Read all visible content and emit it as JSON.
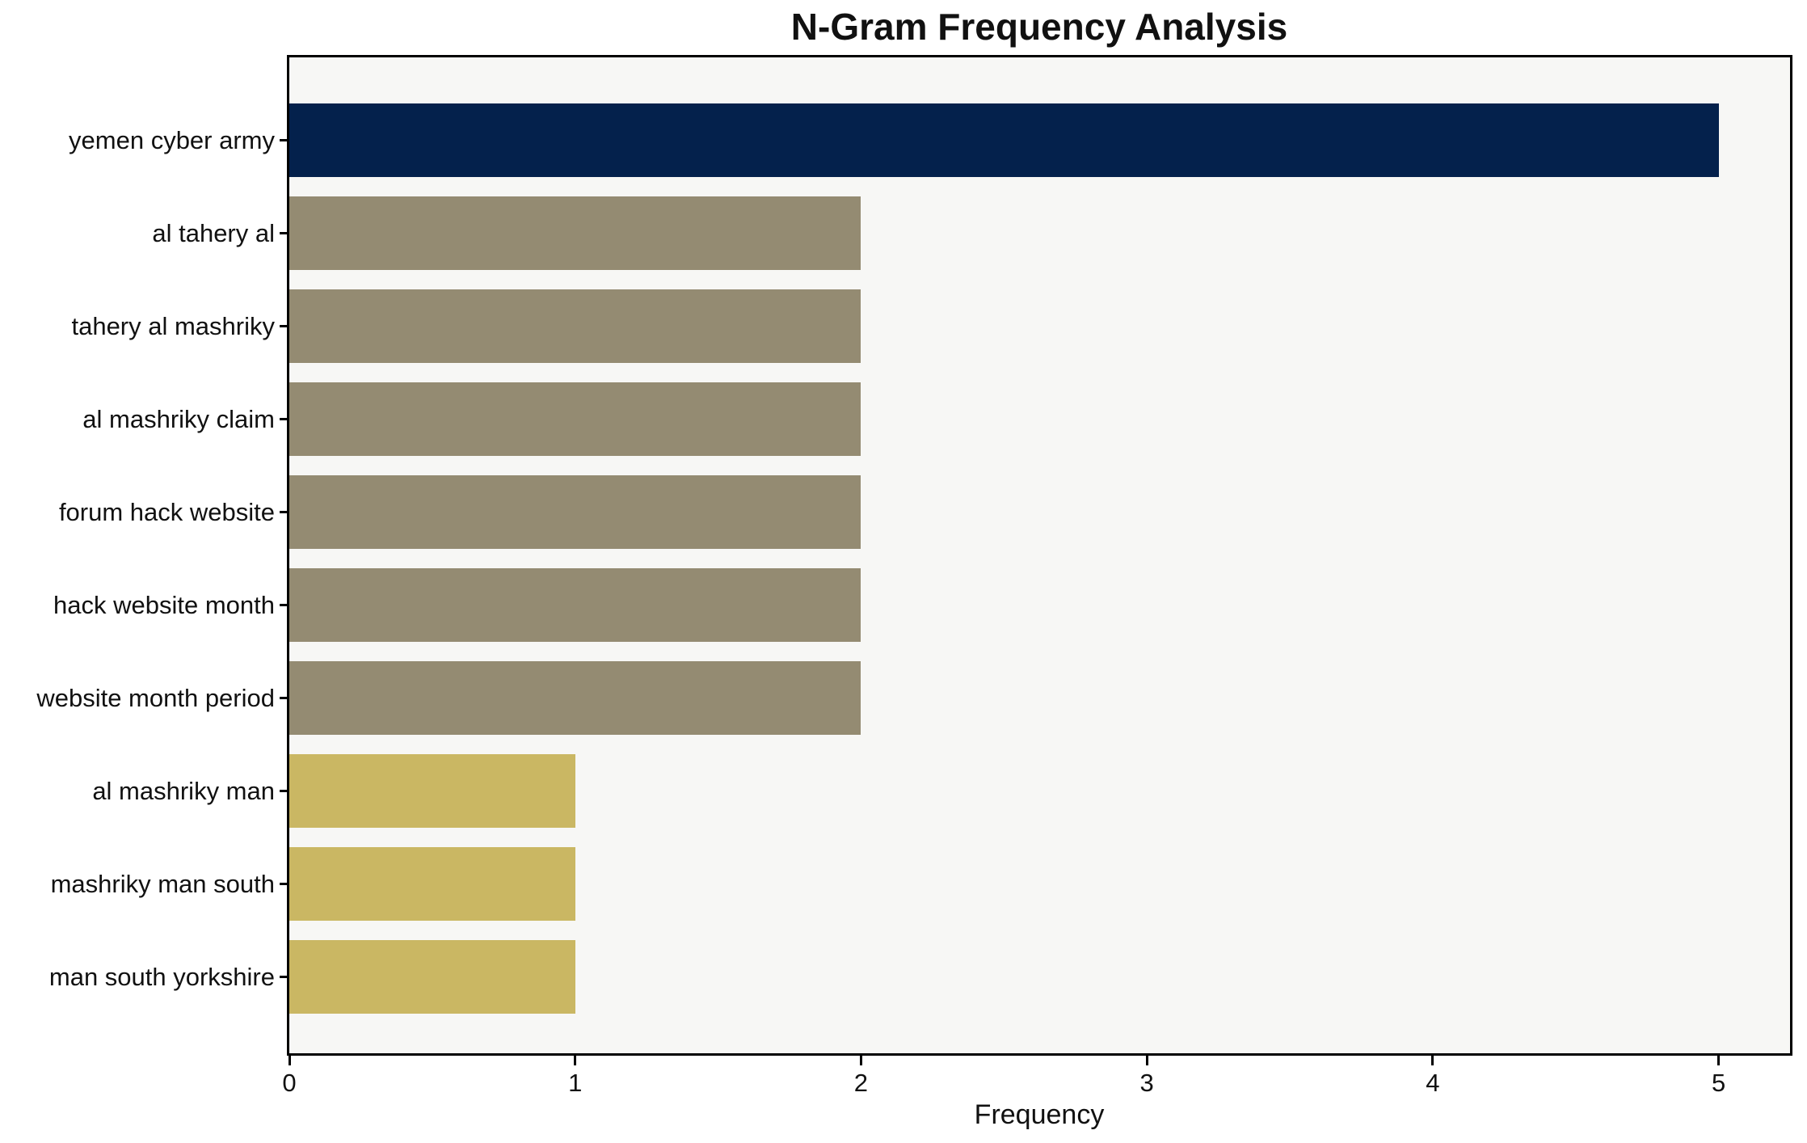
{
  "figure": {
    "title": "N-Gram Frequency Analysis",
    "xlabel": "Frequency"
  },
  "chart_data": {
    "type": "bar",
    "orientation": "horizontal",
    "title": "N-Gram Frequency Analysis",
    "xlabel": "Frequency",
    "ylabel": "",
    "categories": [
      "yemen cyber army",
      "al tahery al",
      "tahery al mashriky",
      "al mashriky claim",
      "forum hack website",
      "hack website month",
      "website month period",
      "al mashriky man",
      "mashriky man south",
      "man south yorkshire"
    ],
    "values": [
      5,
      2,
      2,
      2,
      2,
      2,
      2,
      1,
      1,
      1
    ],
    "bar_colors": [
      "#04214C",
      "#948B72",
      "#948B72",
      "#948B72",
      "#948B72",
      "#948B72",
      "#948B72",
      "#CAB763",
      "#CAB763",
      "#CAB763"
    ],
    "xticks": [
      0,
      1,
      2,
      3,
      4,
      5
    ],
    "xlim": [
      0,
      5.25
    ],
    "grid": false,
    "legend": false,
    "plot_background": "#F7F7F5",
    "figure_background": "#FFFFFF",
    "spine_color": "#000000",
    "text_color": "#111111"
  }
}
